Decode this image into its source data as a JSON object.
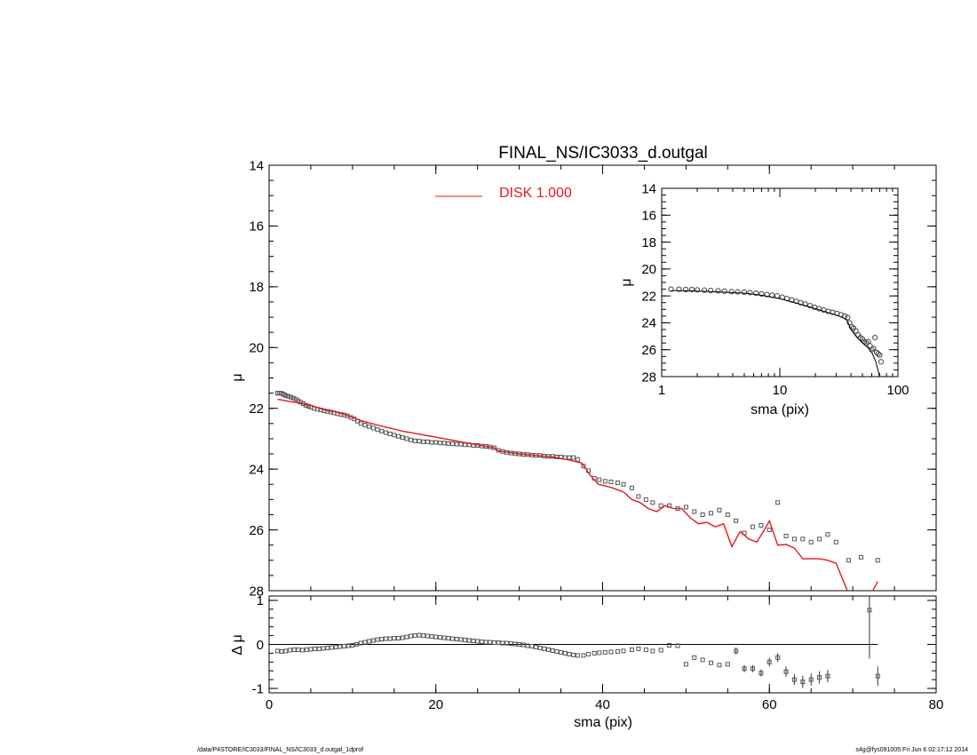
{
  "chart_data": [
    {
      "id": "main",
      "type": "scatter",
      "title": "FINAL_NS/IC3033_d.outgal",
      "xlabel": "",
      "ylabel": "μ",
      "xlim": [
        0,
        80
      ],
      "ylim": [
        28,
        14
      ],
      "y_inverted": true,
      "yticks": [
        14,
        16,
        18,
        20,
        22,
        24,
        26,
        28
      ],
      "legend": {
        "placement": "top-center",
        "label": "DISK  1.000",
        "color": "#e41a1c"
      },
      "series": [
        {
          "type": "scatter",
          "marker": "open-square",
          "color": "#555555",
          "x": [
            1.0,
            1.2,
            1.4,
            1.6,
            1.8,
            2.0,
            2.3,
            2.6,
            2.9,
            3.2,
            3.5,
            3.8,
            4.1,
            4.4,
            4.7,
            5.0,
            5.4,
            5.8,
            6.2,
            6.6,
            7.0,
            7.4,
            7.8,
            8.2,
            8.6,
            9.0,
            9.4,
            9.8,
            10.2,
            10.6,
            11.0,
            11.5,
            12.0,
            12.5,
            13.0,
            13.5,
            14.0,
            14.5,
            15.0,
            15.5,
            16.0,
            16.5,
            17.0,
            17.5,
            18.0,
            18.5,
            19.0,
            19.5,
            20.0,
            20.5,
            21.0,
            21.5,
            22.0,
            22.5,
            23.0,
            23.5,
            24.0,
            24.5,
            25.0,
            25.5,
            26.0,
            26.5,
            27.0,
            27.5,
            28.0,
            28.5,
            29.0,
            29.5,
            30.0,
            30.5,
            31.0,
            31.5,
            32.0,
            32.5,
            33.0,
            33.5,
            34.0,
            34.5,
            35.0,
            35.5,
            36.0,
            36.5,
            37.0,
            37.7,
            38.3,
            39.0,
            39.6,
            40.3,
            41.0,
            41.8,
            42.5,
            43.5,
            44.3,
            45.2,
            46.0,
            47.0,
            48.0,
            49.0,
            50.0,
            51.0,
            52.0,
            53.0,
            54.0,
            55.0,
            56.0,
            57.0,
            58.0,
            59.0,
            60.0,
            61.0,
            62.0,
            63.0,
            64.0,
            65.0,
            66.0,
            67.0,
            68.0,
            69.5,
            71.0,
            73.0
          ],
          "y": [
            21.5,
            21.5,
            21.5,
            21.52,
            21.55,
            21.58,
            21.6,
            21.63,
            21.66,
            21.7,
            21.75,
            21.8,
            21.85,
            21.9,
            21.93,
            21.96,
            22.0,
            22.03,
            22.05,
            22.08,
            22.1,
            22.12,
            22.15,
            22.18,
            22.2,
            22.22,
            22.25,
            22.3,
            22.35,
            22.42,
            22.5,
            22.55,
            22.6,
            22.65,
            22.7,
            22.75,
            22.8,
            22.84,
            22.88,
            22.92,
            22.96,
            23.0,
            23.04,
            23.07,
            23.08,
            23.1,
            23.1,
            23.12,
            23.12,
            23.14,
            23.14,
            23.16,
            23.16,
            23.18,
            23.18,
            23.2,
            23.2,
            23.22,
            23.22,
            23.24,
            23.25,
            23.27,
            23.3,
            23.38,
            23.42,
            23.45,
            23.47,
            23.49,
            23.5,
            23.52,
            23.52,
            23.54,
            23.55,
            23.55,
            23.57,
            23.58,
            23.58,
            23.6,
            23.6,
            23.62,
            23.62,
            23.62,
            23.68,
            23.9,
            24.05,
            24.3,
            24.35,
            24.4,
            24.42,
            24.45,
            24.5,
            24.62,
            24.9,
            25.0,
            25.1,
            25.2,
            25.2,
            25.3,
            25.25,
            25.4,
            25.5,
            25.45,
            25.35,
            25.5,
            25.7,
            26.1,
            25.9,
            25.85,
            26.0,
            25.1,
            26.2,
            26.3,
            26.3,
            26.4,
            26.3,
            26.15,
            26.4,
            27.0,
            26.9,
            27.0
          ]
        },
        {
          "type": "line",
          "name": "DISK  1.000",
          "color": "#e41a1c",
          "x": [
            1.0,
            2.0,
            3.0,
            4.0,
            5.0,
            6.0,
            7.0,
            8.0,
            9.0,
            10.0,
            11.0,
            12.0,
            13.0,
            14.0,
            15.0,
            16.0,
            17.0,
            18.0,
            19.0,
            20.0,
            21.0,
            22.0,
            23.0,
            24.0,
            25.0,
            26.0,
            27.0,
            27.5,
            28.0,
            30.0,
            32.0,
            34.0,
            36.0,
            37.5,
            38.5,
            39.5,
            41.0,
            42.5,
            43.5,
            44.5,
            45.5,
            46.5,
            47.5,
            48.5,
            49.5,
            50.5,
            51.5,
            52.5,
            53.5,
            54.5,
            55.5,
            56.5,
            57.5,
            58.5,
            59.5,
            60.0,
            61.0,
            62.0,
            63.0,
            64.0,
            66.0,
            67.0,
            68.0,
            69.5,
            71.0,
            72.0,
            73.0
          ],
          "y": [
            21.7,
            21.75,
            21.8,
            21.85,
            21.9,
            22.0,
            22.08,
            22.12,
            22.2,
            22.3,
            22.4,
            22.48,
            22.55,
            22.62,
            22.68,
            22.75,
            22.8,
            22.85,
            22.9,
            22.95,
            23.0,
            23.05,
            23.1,
            23.15,
            23.2,
            23.25,
            23.3,
            23.4,
            23.42,
            23.5,
            23.55,
            23.6,
            23.7,
            23.8,
            24.2,
            24.5,
            24.6,
            24.75,
            25.0,
            25.1,
            25.3,
            25.4,
            25.2,
            25.3,
            25.3,
            25.6,
            25.8,
            25.75,
            25.9,
            25.8,
            26.55,
            26.05,
            26.3,
            26.4,
            25.95,
            25.7,
            26.5,
            26.48,
            26.6,
            26.95,
            26.95,
            27.0,
            27.1,
            28.1,
            28.8,
            28.2,
            27.7
          ]
        }
      ]
    },
    {
      "id": "residual",
      "type": "scatter",
      "xlabel": "sma (pix)",
      "ylabel": "Δ μ",
      "xlim": [
        0,
        80
      ],
      "ylim": [
        -1.1,
        1.1
      ],
      "xticks": [
        0,
        20,
        40,
        60,
        80
      ],
      "yticks": [
        -1,
        0,
        1
      ],
      "zero_line_x": [
        1,
        73
      ],
      "series": [
        {
          "type": "scatter",
          "marker": "open-square",
          "color": "#555555",
          "x": [
            1.0,
            1.5,
            2.0,
            2.5,
            3.0,
            3.5,
            4.0,
            4.5,
            5.0,
            5.5,
            6.0,
            6.5,
            7.0,
            7.5,
            8.0,
            8.5,
            9.0,
            9.5,
            10.0,
            10.5,
            11.0,
            11.5,
            12.0,
            12.5,
            13.0,
            13.5,
            14.0,
            14.5,
            15.0,
            15.5,
            16.0,
            16.5,
            17.0,
            17.5,
            18.0,
            18.5,
            19.0,
            19.5,
            20.0,
            20.5,
            21.0,
            21.5,
            22.0,
            22.5,
            23.0,
            23.5,
            24.0,
            24.5,
            25.0,
            25.5,
            26.0,
            26.5,
            27.0,
            27.5,
            28.0,
            28.5,
            29.0,
            29.5,
            30.0,
            30.5,
            31.0,
            31.5,
            32.0,
            32.5,
            33.0,
            33.5,
            34.0,
            34.5,
            35.0,
            35.5,
            36.0,
            36.5,
            37.0,
            37.7,
            38.3,
            39.0,
            39.6,
            40.3,
            41.0,
            41.8,
            42.5,
            43.5,
            44.3,
            45.2,
            46.0,
            47.0,
            48.0,
            49.0,
            50.0,
            51.0,
            52.0,
            53.0,
            54.0,
            55.0,
            56.0,
            57.0,
            58.0,
            59.0,
            60.0,
            61.0,
            62.0,
            63.0,
            64.0,
            65.0,
            66.0,
            67.0,
            72.0,
            73.0
          ],
          "y": [
            -0.15,
            -0.16,
            -0.15,
            -0.13,
            -0.12,
            -0.12,
            -0.13,
            -0.12,
            -0.11,
            -0.1,
            -0.1,
            -0.09,
            -0.08,
            -0.07,
            -0.06,
            -0.05,
            -0.04,
            -0.03,
            -0.02,
            0.0,
            0.03,
            0.05,
            0.07,
            0.09,
            0.11,
            0.12,
            0.13,
            0.13,
            0.14,
            0.14,
            0.15,
            0.17,
            0.19,
            0.2,
            0.21,
            0.2,
            0.19,
            0.18,
            0.17,
            0.16,
            0.15,
            0.14,
            0.13,
            0.12,
            0.11,
            0.1,
            0.09,
            0.08,
            0.07,
            0.06,
            0.05,
            0.05,
            0.04,
            0.04,
            0.03,
            0.03,
            0.02,
            0.01,
            0.0,
            -0.01,
            -0.03,
            -0.04,
            -0.06,
            -0.08,
            -0.1,
            -0.12,
            -0.14,
            -0.16,
            -0.18,
            -0.2,
            -0.22,
            -0.24,
            -0.25,
            -0.25,
            -0.22,
            -0.2,
            -0.19,
            -0.18,
            -0.17,
            -0.16,
            -0.15,
            -0.12,
            -0.1,
            -0.12,
            -0.15,
            -0.13,
            -0.02,
            -0.03,
            -0.45,
            -0.3,
            -0.35,
            -0.42,
            -0.47,
            -0.45,
            -0.15,
            -0.55,
            -0.55,
            -0.65,
            -0.4,
            -0.3,
            -0.62,
            -0.8,
            -0.85,
            -0.8,
            -0.75,
            -0.72,
            0.78,
            -0.72
          ],
          "yerr": [
            0,
            0,
            0,
            0,
            0,
            0,
            0,
            0,
            0,
            0,
            0,
            0,
            0,
            0,
            0,
            0,
            0,
            0,
            0,
            0,
            0,
            0,
            0,
            0,
            0,
            0,
            0,
            0,
            0,
            0,
            0,
            0,
            0,
            0,
            0,
            0,
            0,
            0,
            0,
            0,
            0,
            0,
            0,
            0,
            0,
            0,
            0,
            0,
            0,
            0,
            0,
            0,
            0,
            0,
            0,
            0,
            0,
            0,
            0,
            0,
            0,
            0,
            0,
            0,
            0,
            0,
            0,
            0,
            0,
            0,
            0,
            0,
            0,
            0,
            0,
            0,
            0,
            0,
            0,
            0,
            0,
            0,
            0,
            0,
            0,
            0,
            0,
            0,
            0,
            0,
            0,
            0,
            0,
            0,
            0.08,
            0.08,
            0.08,
            0.08,
            0.1,
            0.1,
            0.12,
            0.12,
            0.14,
            0.14,
            0.14,
            0.14,
            1.1,
            0.22
          ]
        }
      ]
    },
    {
      "id": "inset",
      "type": "scatter",
      "xlabel": "sma (pix)",
      "ylabel": "μ",
      "xscale": "log",
      "xlim": [
        1,
        100
      ],
      "ylim": [
        28,
        14
      ],
      "y_inverted": true,
      "xticks": [
        1,
        10,
        100
      ],
      "yticks": [
        14,
        16,
        18,
        20,
        22,
        24,
        26,
        28
      ],
      "series": [
        {
          "type": "scatter",
          "marker": "open-circle",
          "color": "#444444",
          "x": [
            1.2,
            1.4,
            1.6,
            1.8,
            2.0,
            2.3,
            2.6,
            3.0,
            3.4,
            3.9,
            4.4,
            5.0,
            5.6,
            6.3,
            7.0,
            7.8,
            8.6,
            9.5,
            10.5,
            11.5,
            12.6,
            13.8,
            15.0,
            16.4,
            18.0,
            19.7,
            21.5,
            23.5,
            25.7,
            28.0,
            30.5,
            33.0,
            35.5,
            37.5,
            39.0,
            40.5,
            42.0,
            44.0,
            46.0,
            48.0,
            50.0,
            52.0,
            54.0,
            56.0,
            58.0,
            60.0,
            62.0,
            64.0,
            66.0,
            68.0,
            70.0,
            72.0
          ],
          "y": [
            21.5,
            21.5,
            21.52,
            21.52,
            21.55,
            21.57,
            21.6,
            21.62,
            21.65,
            21.68,
            21.7,
            21.72,
            21.75,
            21.8,
            21.85,
            21.9,
            21.95,
            22.0,
            22.1,
            22.2,
            22.3,
            22.4,
            22.5,
            22.6,
            22.72,
            22.85,
            22.95,
            23.05,
            23.15,
            23.22,
            23.3,
            23.4,
            23.5,
            23.6,
            24.0,
            24.3,
            24.4,
            24.6,
            24.9,
            25.1,
            25.2,
            25.4,
            25.5,
            25.4,
            25.7,
            26.0,
            25.9,
            25.1,
            26.2,
            26.3,
            26.4,
            26.9
          ]
        },
        {
          "type": "line",
          "color": "#000000",
          "x": [
            1.2,
            2.0,
            3.0,
            5.0,
            7.0,
            10.0,
            14.0,
            20.0,
            27.0,
            33.0,
            37.0,
            40.0,
            45.0,
            50.0,
            55.0,
            60.0,
            65.0,
            70.0,
            73.0
          ],
          "y": [
            21.6,
            21.65,
            21.7,
            21.8,
            21.95,
            22.2,
            22.55,
            22.95,
            23.3,
            23.55,
            23.8,
            24.5,
            25.1,
            25.5,
            25.8,
            26.2,
            26.9,
            28.0,
            30.0
          ]
        }
      ]
    }
  ],
  "footer": {
    "left": "/data/P4STORE/IC3033/FINAL_NS/IC3033_d.outgal_1dprof",
    "right": "s4g@fys091005  Fri Jun  6 02:17:12 2014"
  }
}
